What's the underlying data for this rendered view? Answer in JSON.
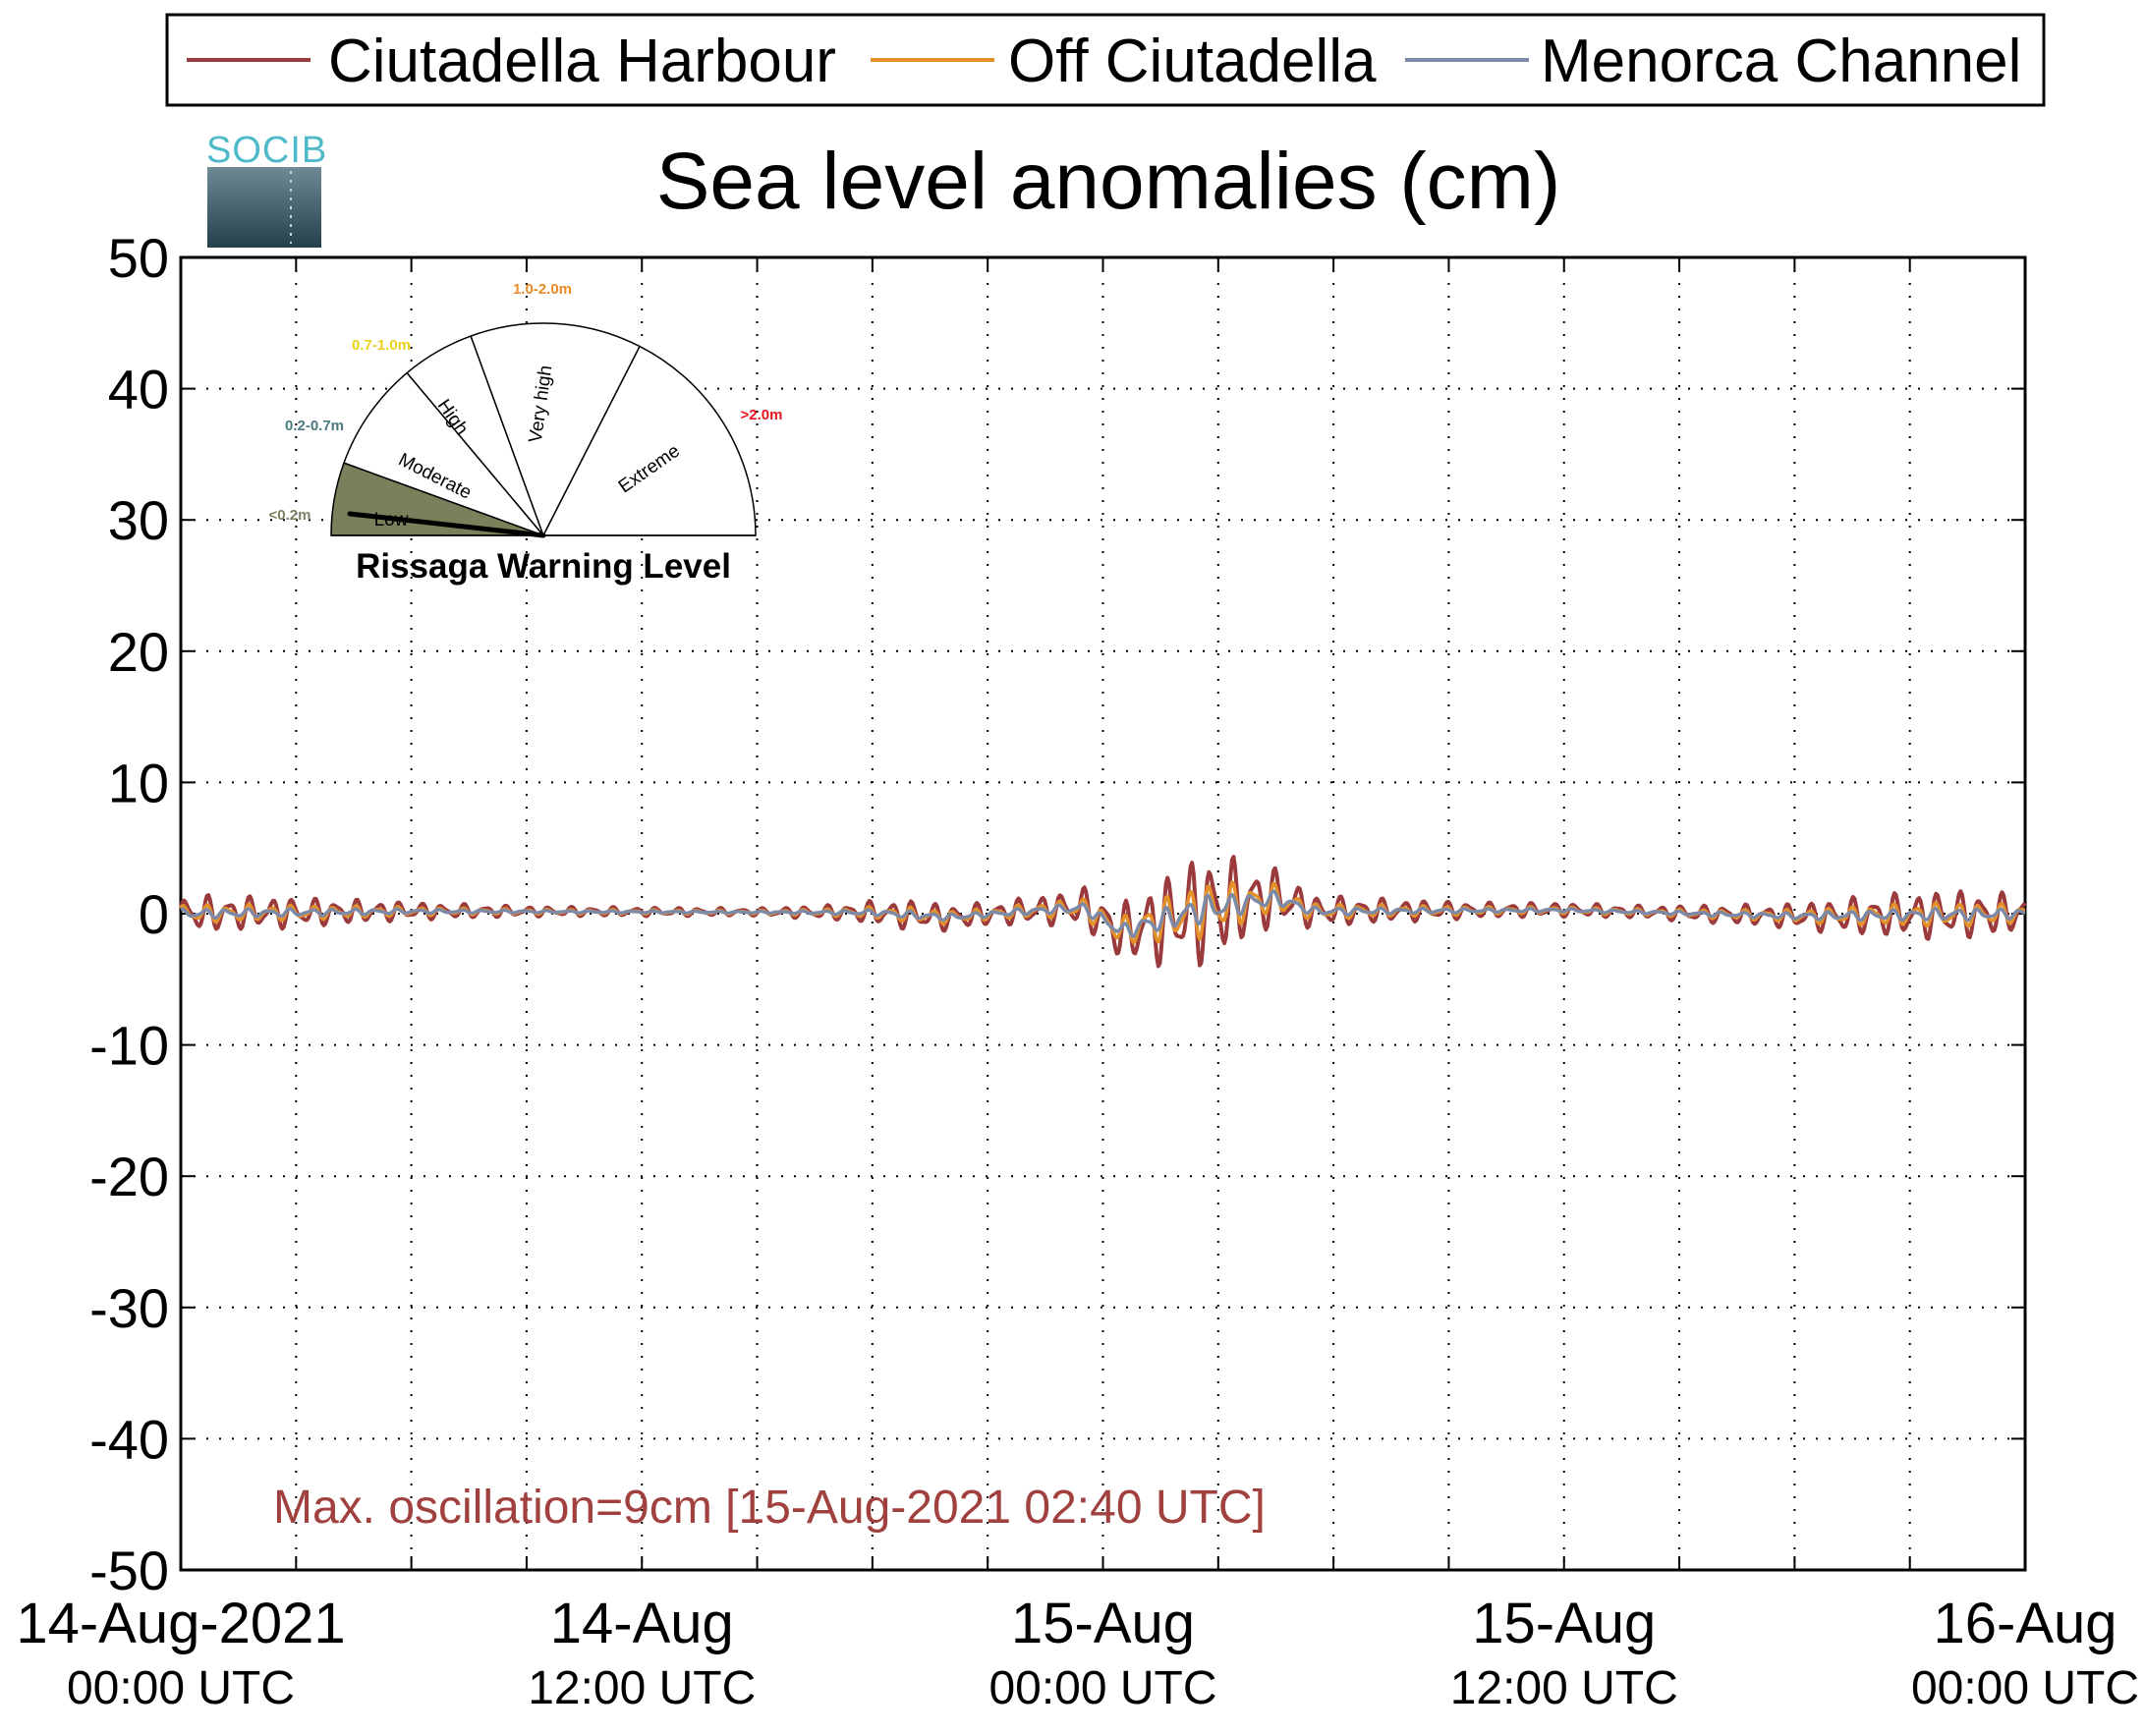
{
  "chart_data": {
    "type": "line",
    "title": "Sea level anomalies (cm)",
    "xlabel": "",
    "ylabel": "",
    "ylim": [
      -50,
      50
    ],
    "yticks": [
      50,
      40,
      30,
      20,
      10,
      0,
      -10,
      -20,
      -30,
      -40,
      -50
    ],
    "xrange_hours": [
      0,
      48
    ],
    "xticks": [
      {
        "line1": "14-Aug-2021",
        "line2": "00:00 UTC"
      },
      {
        "line1": "14-Aug",
        "line2": "12:00 UTC"
      },
      {
        "line1": "15-Aug",
        "line2": "00:00 UTC"
      },
      {
        "line1": "15-Aug",
        "line2": "12:00 UTC"
      },
      {
        "line1": "16-Aug",
        "line2": "00:00 UTC"
      }
    ],
    "grid": true,
    "legend_position": "top",
    "series": [
      {
        "name": "Ciutadella Harbour",
        "color": "#9b3a3d",
        "envelope": [
          {
            "x": 0,
            "amp": 1.5
          },
          {
            "x": 3,
            "amp": 1.2
          },
          {
            "x": 6,
            "amp": 0.7
          },
          {
            "x": 9,
            "amp": 0.4
          },
          {
            "x": 15,
            "amp": 0.3
          },
          {
            "x": 17,
            "amp": 0.6
          },
          {
            "x": 19,
            "amp": 1.2
          },
          {
            "x": 21,
            "amp": 0.9
          },
          {
            "x": 22.5,
            "amp": 1.2
          },
          {
            "x": 23.5,
            "amp": 1.6
          },
          {
            "x": 24.4,
            "amp": 2.2
          },
          {
            "x": 25.5,
            "amp": 3.5
          },
          {
            "x": 26.7,
            "amp": 4.6
          },
          {
            "x": 28,
            "amp": 2.8
          },
          {
            "x": 29.5,
            "amp": 1.3
          },
          {
            "x": 31,
            "amp": 1.0
          },
          {
            "x": 34,
            "amp": 0.6
          },
          {
            "x": 38,
            "amp": 0.5
          },
          {
            "x": 41.5,
            "amp": 0.9
          },
          {
            "x": 44,
            "amp": 1.6
          },
          {
            "x": 46,
            "amp": 2.0
          },
          {
            "x": 48,
            "amp": 1.5
          }
        ],
        "baseline": [
          {
            "x": 0,
            "y": 0
          },
          {
            "x": 6,
            "y": 0.2
          },
          {
            "x": 18,
            "y": 0.1
          },
          {
            "x": 20,
            "y": -0.3
          },
          {
            "x": 22,
            "y": 0.2
          },
          {
            "x": 23.5,
            "y": 0.5
          },
          {
            "x": 24.5,
            "y": -1.5
          },
          {
            "x": 25.5,
            "y": -0.6
          },
          {
            "x": 26.5,
            "y": 0.3
          },
          {
            "x": 28.5,
            "y": 1.3
          },
          {
            "x": 29.5,
            "y": 0.2
          },
          {
            "x": 36,
            "y": 0.3
          },
          {
            "x": 42,
            "y": -0.2
          },
          {
            "x": 48,
            "y": 0
          }
        ]
      },
      {
        "name": "Off Ciutadella",
        "color": "#e5912a",
        "envelope_scale": 0.5
      },
      {
        "name": "Menorca Channel",
        "color": "#7d8aa7",
        "envelope_scale": 0.25
      }
    ],
    "annotation": "Max. oscillation=9cm [15-Aug-2021 02:40 UTC]",
    "annotation_color": "#a1413f"
  },
  "logo": {
    "text": "SOCIB"
  },
  "gauge": {
    "title": "Rissaga Warning Level",
    "level": "Low",
    "sectors": [
      {
        "name": "Low",
        "range": "<0.2m",
        "range_color": "#7c8060"
      },
      {
        "name": "Moderate",
        "range": "0.2-0.7m",
        "range_color": "#4b7a80"
      },
      {
        "name": "High",
        "range": "0.7-1.0m",
        "range_color": "#e9d21a"
      },
      {
        "name": "Very high",
        "range": "1.0-2.0m",
        "range_color": "#ec8b25"
      },
      {
        "name": "Extreme",
        "range": ">2.0m",
        "range_color": "#e4161c"
      }
    ],
    "active_fill": "#7a7f5c"
  }
}
